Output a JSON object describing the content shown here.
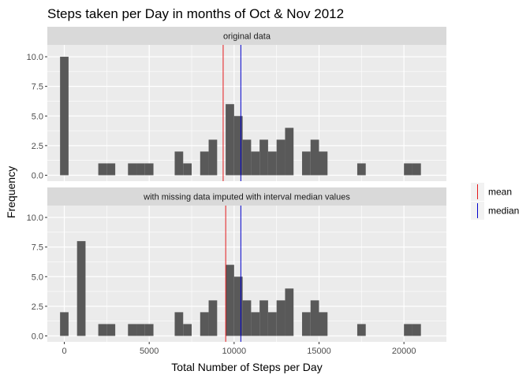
{
  "chart_data": {
    "type": "bar",
    "title": "Steps taken per Day in months of Oct & Nov 2012",
    "xlabel": "Total Number of Steps per Day",
    "ylabel": "Frequency",
    "xlim": [
      -1000,
      22500
    ],
    "ylim": [
      -0.5,
      11.0
    ],
    "x_ticks": [
      0,
      5000,
      10000,
      15000,
      20000
    ],
    "y_ticks": [
      0.0,
      2.5,
      5.0,
      7.5,
      10.0
    ],
    "y_tick_labels": [
      "0.0",
      "2.5",
      "5.0",
      "7.5",
      "10.0"
    ],
    "x_tick_labels": [
      "0",
      "5000",
      "10000",
      "15000",
      "20000"
    ],
    "bin_width": 500,
    "grid": true,
    "legend": {
      "placement": "right",
      "items": [
        {
          "label": "mean",
          "color": "#e41a1c"
        },
        {
          "label": "median",
          "color": "#0000cc"
        }
      ]
    },
    "colors": {
      "bar": "#595959",
      "panel_bg": "#ebebeb",
      "strip_bg": "#d9d9d9",
      "grid": "#ffffff"
    },
    "panels": [
      {
        "label": "original data",
        "mean": 9354,
        "median": 10395,
        "bins": [
          {
            "x": 0,
            "count": 10
          },
          {
            "x": 2250,
            "count": 1
          },
          {
            "x": 2750,
            "count": 1
          },
          {
            "x": 4000,
            "count": 1
          },
          {
            "x": 4500,
            "count": 1
          },
          {
            "x": 5000,
            "count": 1
          },
          {
            "x": 6750,
            "count": 2
          },
          {
            "x": 7250,
            "count": 1
          },
          {
            "x": 8250,
            "count": 2
          },
          {
            "x": 8750,
            "count": 3
          },
          {
            "x": 9750,
            "count": 6
          },
          {
            "x": 10250,
            "count": 5
          },
          {
            "x": 10750,
            "count": 3
          },
          {
            "x": 11250,
            "count": 2
          },
          {
            "x": 11750,
            "count": 3
          },
          {
            "x": 12250,
            "count": 2
          },
          {
            "x": 12750,
            "count": 3
          },
          {
            "x": 13250,
            "count": 4
          },
          {
            "x": 14250,
            "count": 2
          },
          {
            "x": 14750,
            "count": 3
          },
          {
            "x": 15250,
            "count": 2
          },
          {
            "x": 17500,
            "count": 1
          },
          {
            "x": 20250,
            "count": 1
          },
          {
            "x": 20750,
            "count": 1
          }
        ]
      },
      {
        "label": "with missing data imputed with interval median values",
        "mean": 9504,
        "median": 10395,
        "bins": [
          {
            "x": 0,
            "count": 2
          },
          {
            "x": 1000,
            "count": 8
          },
          {
            "x": 2250,
            "count": 1
          },
          {
            "x": 2750,
            "count": 1
          },
          {
            "x": 4000,
            "count": 1
          },
          {
            "x": 4500,
            "count": 1
          },
          {
            "x": 5000,
            "count": 1
          },
          {
            "x": 6750,
            "count": 2
          },
          {
            "x": 7250,
            "count": 1
          },
          {
            "x": 8250,
            "count": 2
          },
          {
            "x": 8750,
            "count": 3
          },
          {
            "x": 9750,
            "count": 6
          },
          {
            "x": 10250,
            "count": 5
          },
          {
            "x": 10750,
            "count": 3
          },
          {
            "x": 11250,
            "count": 2
          },
          {
            "x": 11750,
            "count": 3
          },
          {
            "x": 12250,
            "count": 2
          },
          {
            "x": 12750,
            "count": 3
          },
          {
            "x": 13250,
            "count": 4
          },
          {
            "x": 14250,
            "count": 2
          },
          {
            "x": 14750,
            "count": 3
          },
          {
            "x": 15250,
            "count": 2
          },
          {
            "x": 17500,
            "count": 1
          },
          {
            "x": 20250,
            "count": 1
          },
          {
            "x": 20750,
            "count": 1
          }
        ]
      }
    ]
  }
}
